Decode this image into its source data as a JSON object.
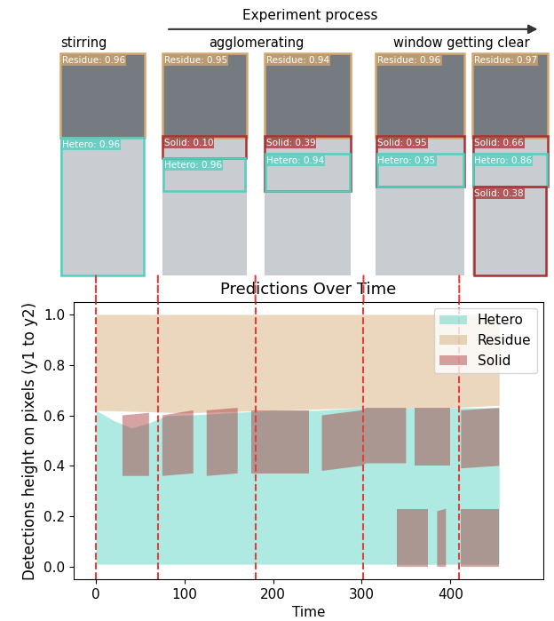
{
  "header": {
    "title": "Experiment process",
    "stages": [
      "stirring",
      "agglomerating",
      "window getting clear"
    ]
  },
  "frames": [
    {
      "detections": [
        "Residue: 0.96",
        "Hetero: 0.96"
      ]
    },
    {
      "detections": [
        "Residue: 0.95",
        "Solid: 0.10",
        "Hetero: 0.96"
      ]
    },
    {
      "detections": [
        "Residue: 0.94",
        "Solid: 0.39",
        "Hetero: 0.94"
      ]
    },
    {
      "detections": [
        "Residue: 0.96",
        "Solid: 0.95",
        "Hetero: 0.95"
      ]
    },
    {
      "detections": [
        "Residue: 0.97",
        "Solid: 0.66",
        "Hetero: 0.86",
        "Solid: 0.38"
      ]
    }
  ],
  "chart_data": {
    "type": "area",
    "title": "Predictions Over Time",
    "x_label": "Time",
    "y_label": "Detections height on pixels (y1 to y2)",
    "xlim": [
      -25,
      505
    ],
    "xticks": [
      0,
      100,
      200,
      300,
      400
    ],
    "ylim": [
      -0.05,
      1.05
    ],
    "yticks": [
      {
        "value": 0,
        "label": "0.0"
      },
      {
        "value": 0.2,
        "label": "0.2"
      },
      {
        "value": 0.4,
        "label": "0.4"
      },
      {
        "value": 0.6,
        "label": "0.6"
      },
      {
        "value": 0.8,
        "label": "0.8"
      },
      {
        "value": 1,
        "label": "1.0"
      }
    ],
    "legend": "upper right",
    "vlines": {
      "x": [
        0,
        70,
        180,
        302,
        410
      ],
      "color": "#e0403a",
      "line_style": "dashed"
    },
    "series": [
      {
        "name": "Hetero",
        "color": "#4fd1c0",
        "bands": [
          {
            "x": [
              0,
              20,
              40,
              60,
              80,
              100,
              150,
              200,
              250,
              300,
              350,
              400,
              455
            ],
            "y1": [
              0.01,
              0.01,
              0.01,
              0.01,
              0.01,
              0.01,
              0.01,
              0.01,
              0.01,
              0.01,
              0.01,
              0.01,
              0.01
            ],
            "y2": [
              0.62,
              0.58,
              0.55,
              0.57,
              0.6,
              0.6,
              0.61,
              0.62,
              0.62,
              0.63,
              0.63,
              0.63,
              0.63
            ]
          }
        ]
      },
      {
        "name": "Residue",
        "color": "#d2a870",
        "bands": [
          {
            "x": [
              0,
              100,
              200,
              300,
              400,
              455
            ],
            "y1": [
              0.62,
              0.61,
              0.62,
              0.63,
              0.63,
              0.64
            ],
            "y2": [
              1.0,
              1.0,
              1.0,
              1.0,
              1.0,
              1.0
            ]
          }
        ]
      },
      {
        "name": "Solid",
        "color": "#a83232",
        "bands": [
          {
            "x": [
              30,
              60,
              62,
              75,
              110,
              112,
              125,
              160,
              162,
              175,
              240,
              242,
              255,
              300,
              305,
              350,
              352,
              360,
              400,
              402,
              412,
              455
            ],
            "y1": [
              0.36,
              0.36,
              null,
              0.36,
              0.37,
              null,
              0.36,
              0.37,
              null,
              0.37,
              0.37,
              null,
              0.38,
              0.4,
              0.41,
              0.41,
              null,
              0.4,
              0.4,
              null,
              0.39,
              0.4
            ],
            "y2": [
              0.6,
              0.61,
              null,
              0.6,
              0.62,
              null,
              0.62,
              0.63,
              null,
              0.62,
              0.62,
              null,
              0.6,
              0.62,
              0.63,
              0.63,
              null,
              0.63,
              0.63,
              null,
              0.62,
              0.63
            ]
          },
          {
            "x": [
              340,
              375,
              377,
              385,
              395,
              397,
              412,
              455
            ],
            "y1": [
              0.0,
              0.0,
              null,
              0.0,
              0.0,
              null,
              0.0,
              0.0
            ],
            "y2": [
              0.23,
              0.23,
              null,
              0.22,
              0.23,
              null,
              0.23,
              0.23
            ]
          }
        ]
      }
    ]
  }
}
